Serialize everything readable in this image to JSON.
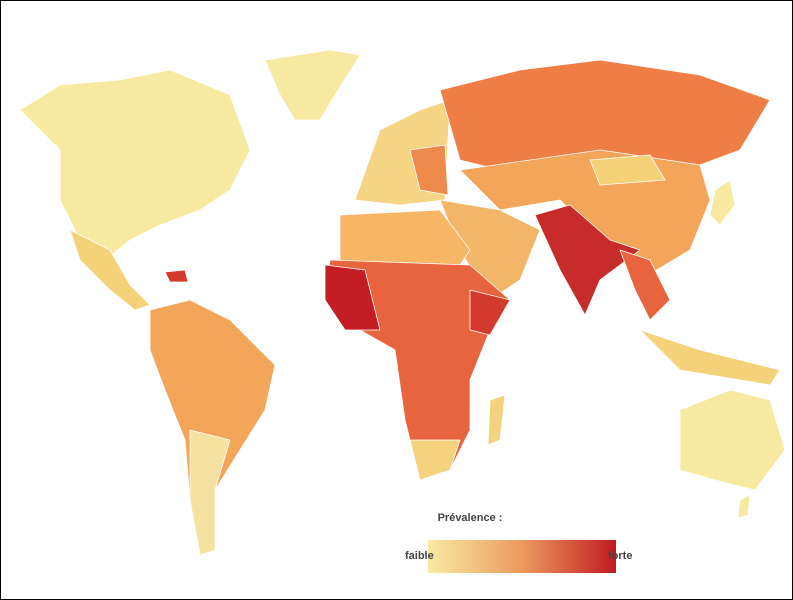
{
  "legend": {
    "title": "Prévalence :",
    "low": "faible",
    "high": "forte"
  }
}
